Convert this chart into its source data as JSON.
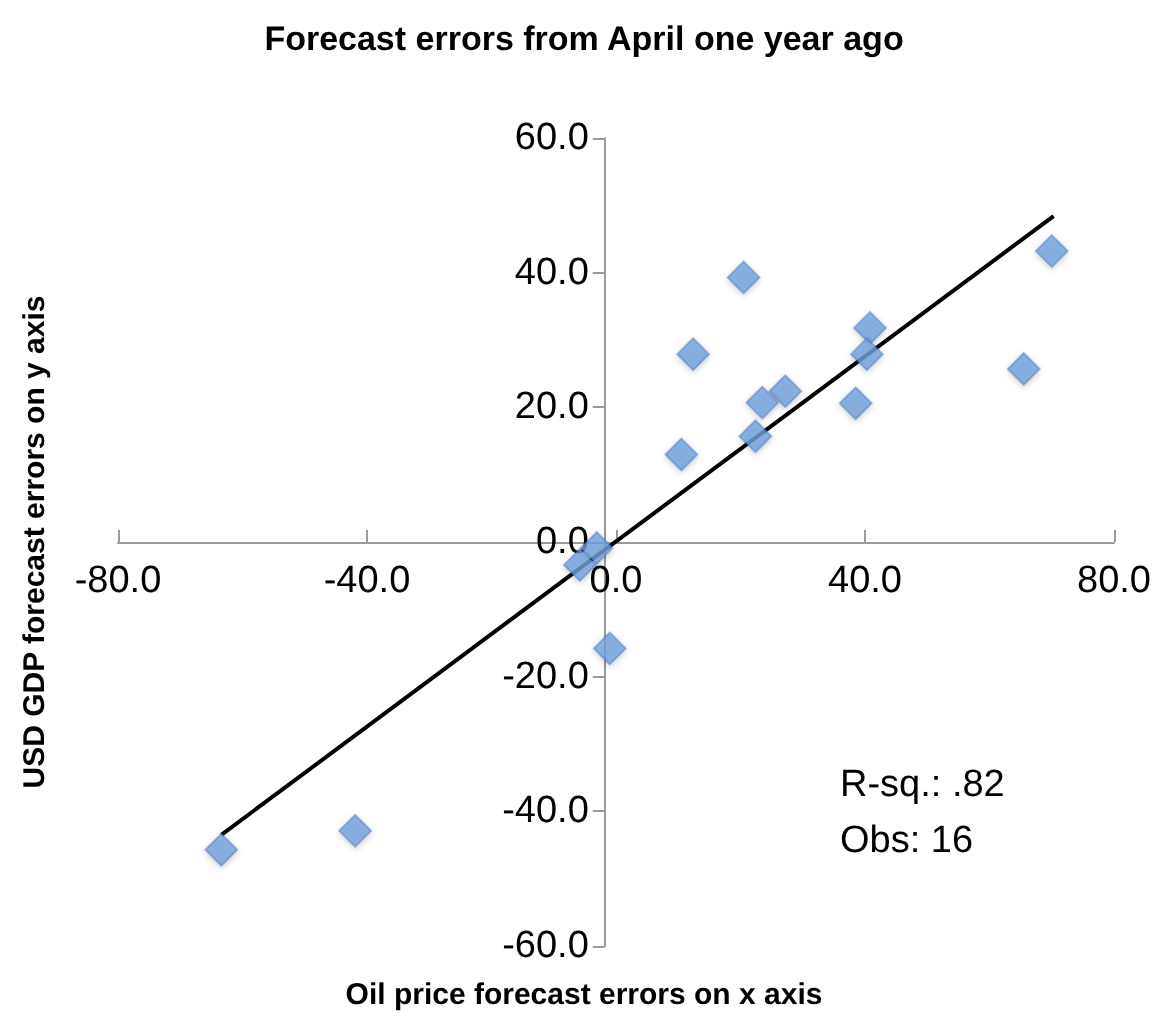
{
  "chart_data": {
    "type": "scatter",
    "title": "Forecast errors from April one year ago",
    "xlabel": "Oil price forecast errors on x axis",
    "ylabel": "USD GDP forecast errors on y axis",
    "annotations": [
      "R-sq.: .82",
      "Obs: 16"
    ],
    "marker": "diamond",
    "grid": false,
    "xlim": [
      -80,
      80
    ],
    "xticks": [
      {
        "value": -80,
        "label": "-80.0"
      },
      {
        "value": -40,
        "label": "-40.0"
      },
      {
        "value": 0,
        "label": "0.0"
      },
      {
        "value": 40,
        "label": "40.0"
      },
      {
        "value": 80,
        "label": "80.0"
      }
    ],
    "ylim": [
      -60,
      60
    ],
    "yticks": [
      {
        "value": -60,
        "label": "-60.0"
      },
      {
        "value": -40,
        "label": "-40.0"
      },
      {
        "value": -20,
        "label": "-20.0"
      },
      {
        "value": 0,
        "label": "0.0"
      },
      {
        "value": 20,
        "label": "20.0"
      },
      {
        "value": 40,
        "label": "40.0"
      },
      {
        "value": 60,
        "label": "60.0"
      }
    ],
    "series": [
      {
        "color": "#6fa0dc",
        "x": [
          70.0,
          20.5,
          12.4,
          40.8,
          40.3,
          65.5,
          27.2,
          23.5,
          38.5,
          22.4,
          10.5,
          -63.4,
          -41.9,
          -1.0,
          -3.1,
          -5.8
        ],
        "values": [
          43.2,
          39.3,
          27.9,
          31.8,
          27.9,
          25.7,
          22.4,
          20.7,
          20.6,
          15.7,
          13.0,
          -45.7,
          -42.9,
          -15.8,
          -0.9,
          -3.4
        ]
      },
      {
        "type": "line",
        "color": "#000000",
        "marker": "none",
        "line_style": "solid",
        "x": [
          -63.4,
          70.3
        ],
        "values": [
          -43.5,
          48.4
        ]
      }
    ]
  }
}
